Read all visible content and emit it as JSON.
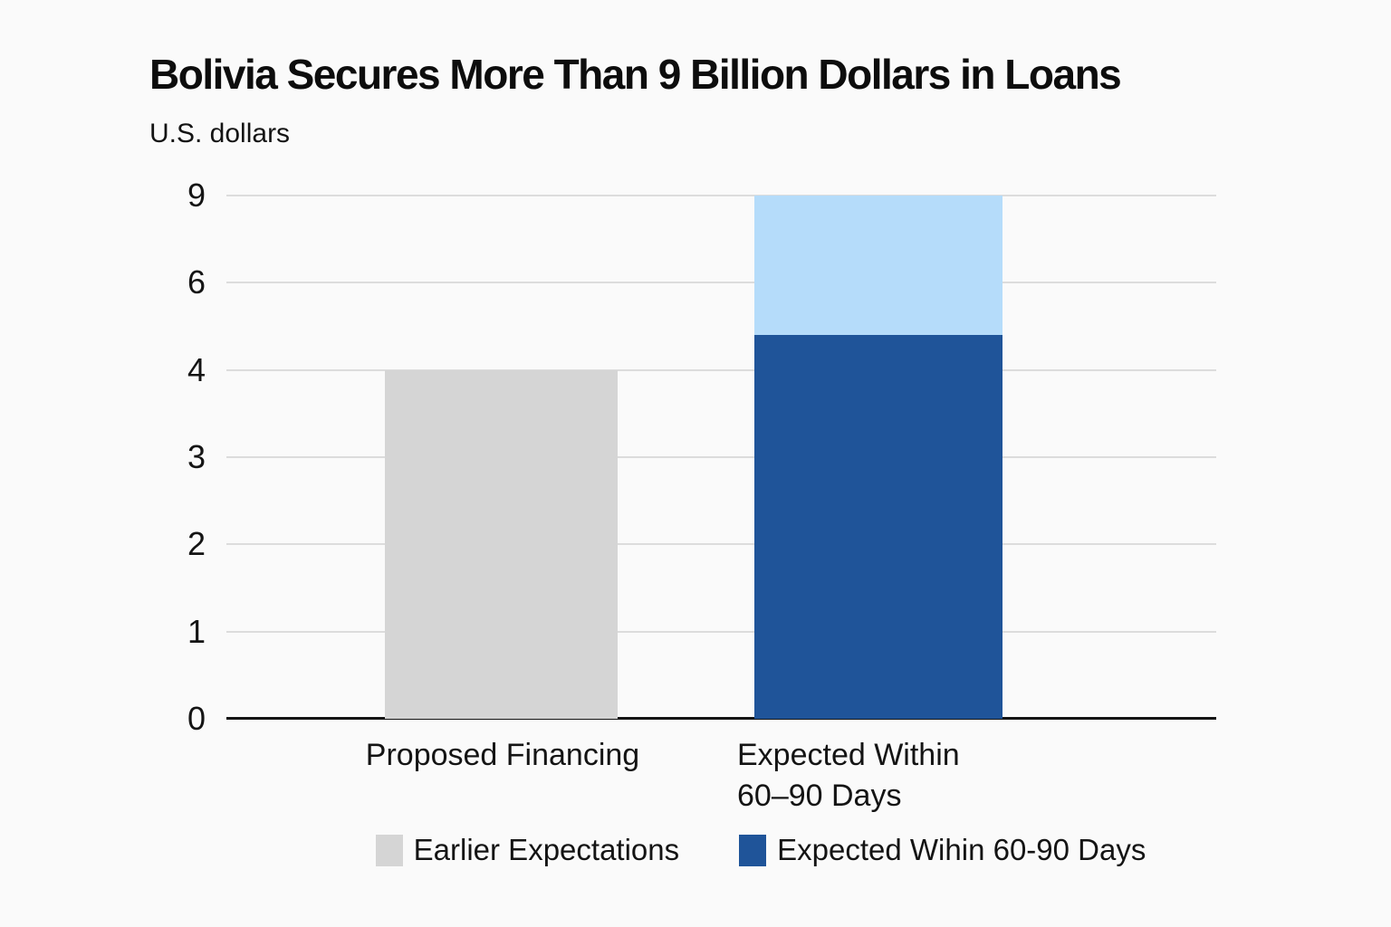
{
  "colors": {
    "background": "#fafafa",
    "title_text": "#0d0d0d",
    "body_text": "#141414",
    "gridline": "#dcdcdc",
    "axis_line": "#141414",
    "bar_gray": "#d5d5d5",
    "bar_dark_blue": "#1f5499",
    "bar_light_blue": "#b5dcfa"
  },
  "chart_data": {
    "type": "bar",
    "stacked": true,
    "title": "Bolivia Secures More Than 9 Billion Dollars in Loans",
    "subtitle": "U.S. dollars",
    "ylabel": "U.S. dollars",
    "yticks": [
      0,
      1,
      2,
      3,
      4,
      6,
      9
    ],
    "ytick_note": "tick values are evenly spaced on screen (non-linear value axis)",
    "ylim": [
      0,
      9
    ],
    "grid": "horizontal gridlines on, solid black zero baseline",
    "legend_position": "bottom-center",
    "categories": [
      "Proposed Financing",
      "Expected Within\n60–90 Days"
    ],
    "bars": [
      {
        "category": "Proposed Financing",
        "total": 4,
        "segments": [
          {
            "name": "Earlier Expectations",
            "value": 4,
            "color": "#d5d5d5"
          }
        ]
      },
      {
        "category": "Expected Within\n60–90 Days",
        "total": 9,
        "segments": [
          {
            "name": "Expected Wihin 60-90 Days",
            "value": 4.8,
            "color": "#1f5499"
          },
          {
            "name": "",
            "value": 4.2,
            "color": "#b5dcfa"
          }
        ]
      }
    ],
    "legend": [
      {
        "label": "Earlier Expectations",
        "color": "#d5d5d5"
      },
      {
        "label": "Expected Wihin 60-90 Days",
        "color": "#1f5499"
      }
    ]
  }
}
